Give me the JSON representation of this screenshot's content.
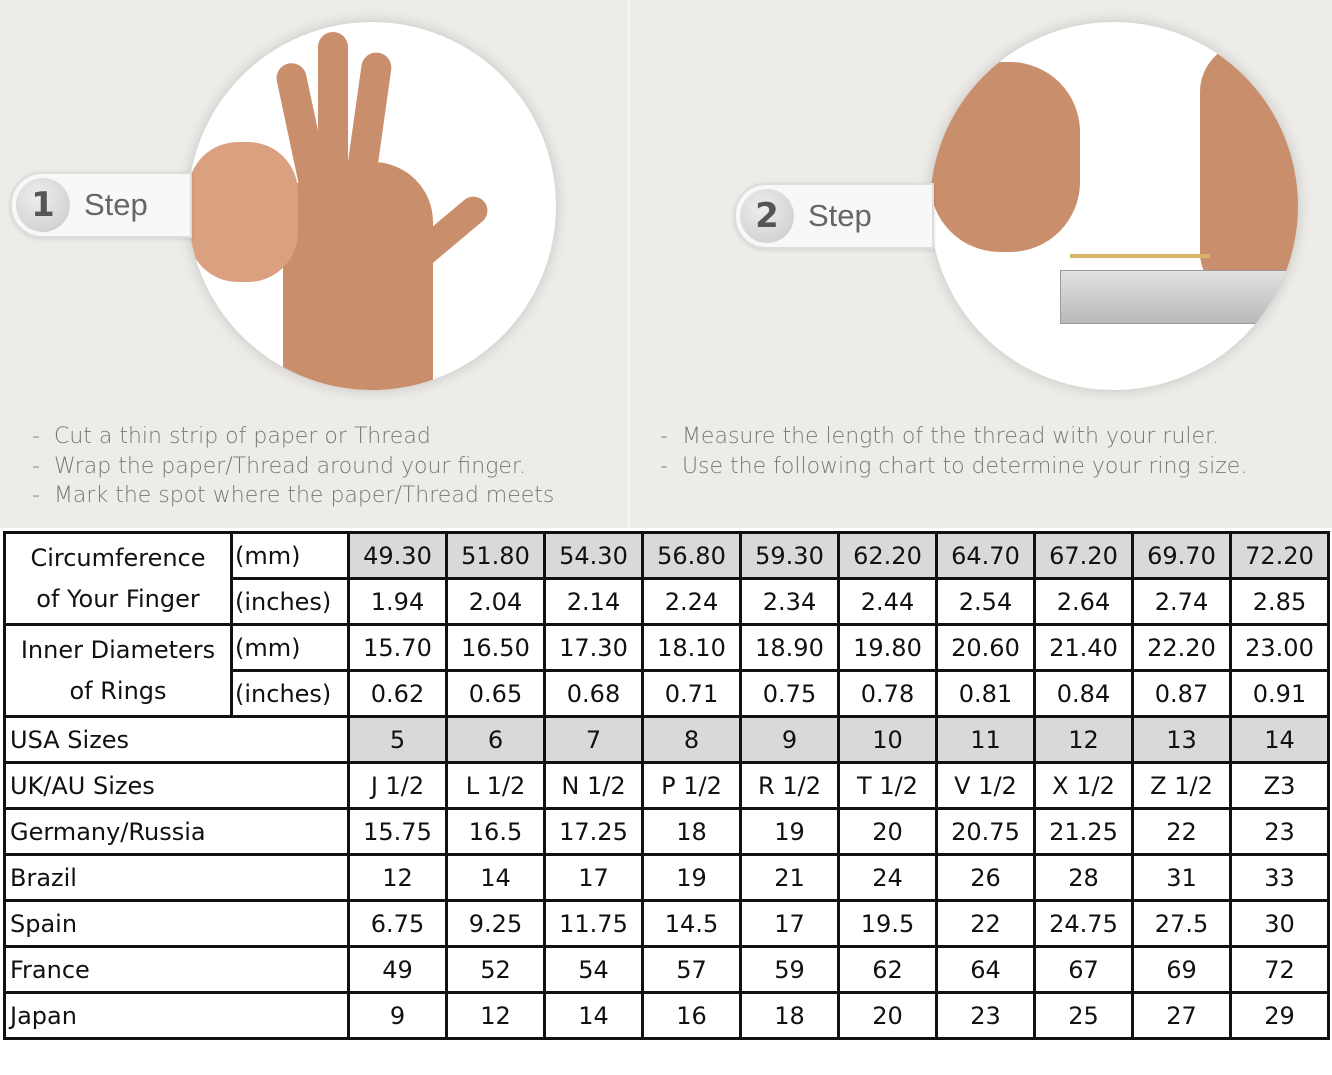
{
  "steps": [
    {
      "number": "1",
      "label": "Step",
      "instructions": [
        "Cut a thin strip of paper or Thread",
        "Wrap the paper/Thread around your finger.",
        "Mark the spot where the paper/Thread meets"
      ]
    },
    {
      "number": "2",
      "label": "Step",
      "instructions": [
        "Measure the length of the thread with your ruler.",
        "Use the following chart to determine your ring size."
      ]
    }
  ],
  "bullet": "-",
  "table": {
    "circumference": {
      "label_line1": "Circumference",
      "label_line2": "of Your Finger",
      "mm_label": "(mm)",
      "inches_label": "(inches)",
      "mm": [
        "49.30",
        "51.80",
        "54.30",
        "56.80",
        "59.30",
        "62.20",
        "64.70",
        "67.20",
        "69.70",
        "72.20"
      ],
      "inches": [
        "1.94",
        "2.04",
        "2.14",
        "2.24",
        "2.34",
        "2.44",
        "2.54",
        "2.64",
        "2.74",
        "2.85"
      ]
    },
    "diameter": {
      "label_line1": "Inner Diameters",
      "label_line2": "of Rings",
      "mm_label": "(mm)",
      "inches_label": "(inches)",
      "mm": [
        "15.70",
        "16.50",
        "17.30",
        "18.10",
        "18.90",
        "19.80",
        "20.60",
        "21.40",
        "22.20",
        "23.00"
      ],
      "inches": [
        "0.62",
        "0.65",
        "0.68",
        "0.71",
        "0.75",
        "0.78",
        "0.81",
        "0.84",
        "0.87",
        "0.91"
      ]
    },
    "rows": [
      {
        "label": "USA Sizes",
        "values": [
          "5",
          "6",
          "7",
          "8",
          "9",
          "10",
          "11",
          "12",
          "13",
          "14"
        ]
      },
      {
        "label": "UK/AU Sizes",
        "values": [
          "J 1/2",
          "L 1/2",
          "N 1/2",
          "P 1/2",
          "R 1/2",
          "T 1/2",
          "V 1/2",
          "X 1/2",
          "Z 1/2",
          "Z3"
        ]
      },
      {
        "label": "Germany/Russia",
        "values": [
          "15.75",
          "16.5",
          "17.25",
          "18",
          "19",
          "20",
          "20.75",
          "21.25",
          "22",
          "23"
        ]
      },
      {
        "label": "Brazil",
        "values": [
          "12",
          "14",
          "17",
          "19",
          "21",
          "24",
          "26",
          "28",
          "31",
          "33"
        ]
      },
      {
        "label": "Spain",
        "values": [
          "6.75",
          "9.25",
          "11.75",
          "14.5",
          "17",
          "19.5",
          "22",
          "24.75",
          "27.5",
          "30"
        ]
      },
      {
        "label": "France",
        "values": [
          "49",
          "52",
          "54",
          "57",
          "59",
          "62",
          "64",
          "67",
          "69",
          "72"
        ]
      },
      {
        "label": "Japan",
        "values": [
          "9",
          "12",
          "14",
          "16",
          "18",
          "20",
          "23",
          "25",
          "27",
          "29"
        ]
      }
    ]
  }
}
